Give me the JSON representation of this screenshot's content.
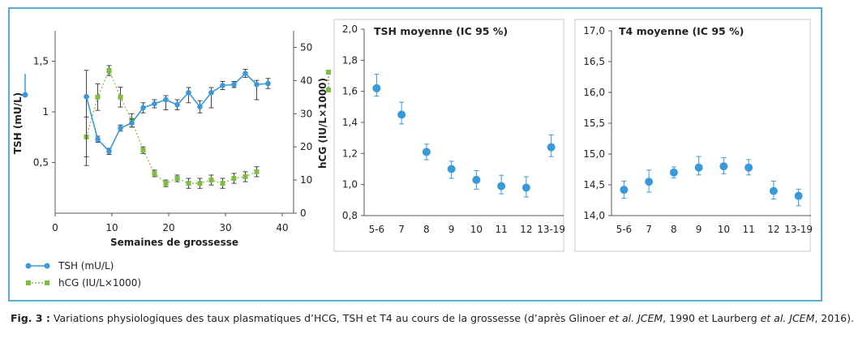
{
  "chart_data": [
    {
      "type": "line",
      "xlabel": "Semaines de grossesse",
      "ylabel_left": "TSH (mU/L)",
      "ylabel_right": "hCG (IU/L×1000)",
      "xlim": [
        0,
        42
      ],
      "ylim_left": [
        0,
        1.8
      ],
      "ylim_right": [
        0,
        55
      ],
      "x_ticks": [
        0,
        10,
        20,
        30,
        40
      ],
      "y_left_ticks": [
        "0,5",
        "1",
        "1,5"
      ],
      "y_left_tick_values": [
        0.5,
        1,
        1.5
      ],
      "y_right_ticks": [
        0,
        10,
        20,
        30,
        40,
        50
      ],
      "legend_position": "bottom-left",
      "series": [
        {
          "name": "TSH (mU/L)",
          "axis": "left",
          "color": "#3a9ad9",
          "style": "solid",
          "marker": "circle",
          "x": [
            5.5,
            7.5,
            9.5,
            11.5,
            13.5,
            15.5,
            17.5,
            19.5,
            21.5,
            23.5,
            25.5,
            27.5,
            29.5,
            31.5,
            33.5,
            35.5,
            37.5
          ],
          "y": [
            1.15,
            0.73,
            0.61,
            0.84,
            0.89,
            1.04,
            1.08,
            1.12,
            1.07,
            1.19,
            1.05,
            1.19,
            1.26,
            1.27,
            1.38,
            1.27,
            1.28
          ],
          "err_lo": [
            0.68,
            0.03,
            0.03,
            0.03,
            0.04,
            0.05,
            0.04,
            0.1,
            0.05,
            0.1,
            0.06,
            0.15,
            0.04,
            0.03,
            0.04,
            0.15,
            0.05
          ],
          "err_hi": [
            0.26,
            0.03,
            0.03,
            0.03,
            0.04,
            0.05,
            0.04,
            0.04,
            0.05,
            0.05,
            0.06,
            0.05,
            0.04,
            0.03,
            0.04,
            0.04,
            0.05
          ]
        },
        {
          "name": "hCG (IU/L×1000)",
          "axis": "right",
          "color": "#7cbd42",
          "style": "dotted",
          "marker": "square",
          "x": [
            5.5,
            7.5,
            9.5,
            11.5,
            13.5,
            15.5,
            17.5,
            19.5,
            21.5,
            23.5,
            25.5,
            27.5,
            29.5,
            31.5,
            33.5,
            35.5
          ],
          "y": [
            23,
            35,
            43,
            35,
            28,
            19,
            12,
            9,
            10.5,
            9,
            9,
            10,
            9,
            10.5,
            11,
            12.5
          ],
          "err": [
            6,
            4,
            1.5,
            3,
            2,
            1,
            1,
            1,
            1,
            1.5,
            1.5,
            1.5,
            1.5,
            1.5,
            1.5,
            1.5
          ]
        }
      ]
    },
    {
      "type": "scatter",
      "title": "TSH moyenne (IC 95 %)",
      "categories": [
        "5-6",
        "7",
        "8",
        "9",
        "10",
        "11",
        "12",
        "13-19"
      ],
      "ylim": [
        0.8,
        2.0
      ],
      "y_ticks": [
        "0,8",
        "1,0",
        "1,2",
        "1,4",
        "1,6",
        "1,8",
        "2,0"
      ],
      "y_tick_values": [
        0.8,
        1.0,
        1.2,
        1.4,
        1.6,
        1.8,
        2.0
      ],
      "values": [
        1.62,
        1.45,
        1.21,
        1.1,
        1.03,
        0.99,
        0.98,
        1.24
      ],
      "err_lo": [
        0.05,
        0.06,
        0.05,
        0.06,
        0.06,
        0.05,
        0.06,
        0.06
      ],
      "err_hi": [
        0.09,
        0.08,
        0.05,
        0.05,
        0.06,
        0.07,
        0.07,
        0.08
      ],
      "color": "#3a9ad9"
    },
    {
      "type": "scatter",
      "title": "T4 moyenne (IC 95 %)",
      "categories": [
        "5-6",
        "7",
        "8",
        "9",
        "10",
        "11",
        "12",
        "13-19"
      ],
      "ylim": [
        14.0,
        17.0
      ],
      "y_ticks": [
        "14,0",
        "14,5",
        "15,0",
        "15,5",
        "16,0",
        "16,5",
        "17,0"
      ],
      "y_tick_values": [
        14.0,
        14.5,
        15.0,
        15.5,
        16.0,
        16.5,
        17.0
      ],
      "values": [
        14.42,
        14.55,
        14.7,
        14.78,
        14.8,
        14.78,
        14.4,
        14.32
      ],
      "err_lo": [
        0.14,
        0.17,
        0.09,
        0.12,
        0.12,
        0.12,
        0.13,
        0.16
      ],
      "err_hi": [
        0.14,
        0.19,
        0.09,
        0.18,
        0.14,
        0.13,
        0.16,
        0.11
      ],
      "color": "#3a9ad9"
    }
  ],
  "caption": {
    "label": "Fig. 3 :",
    "text1": " Variations physiologiques des taux plasmatiques d’HCG, TSH et T4 au cours de la grossesse (d’après Glinoer ",
    "etal1": "et al. JCEM",
    "text2": ", 1990 et Laurberg ",
    "etal2": "et al. JCEM",
    "text3": ", 2016)."
  }
}
